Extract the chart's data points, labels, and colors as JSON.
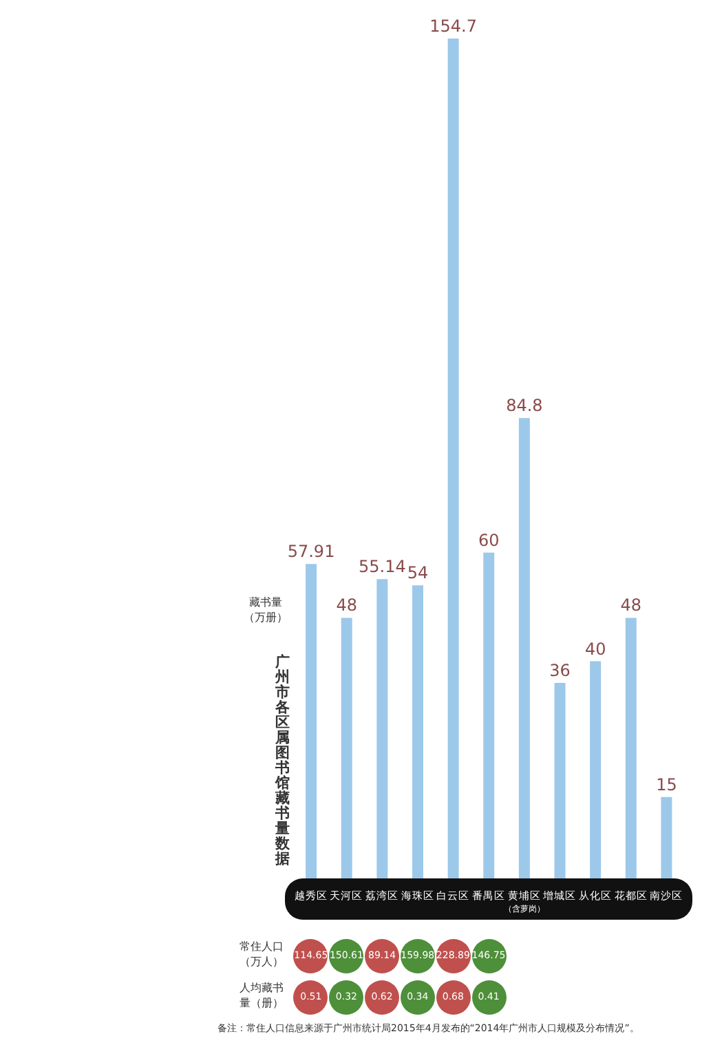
{
  "chart_data": {
    "type": "bar",
    "title": "广州市各区属图书馆藏书量数据",
    "ylabel": "藏书量（万册）",
    "categories": [
      "越秀区",
      "天河区",
      "荔湾区",
      "海珠区",
      "白云区",
      "番禺区",
      "黄埔区$_{（含萝岗）}$",
      "增城区",
      "从化区",
      "花都区",
      "南沙区"
    ],
    "values": [
      57.91,
      48,
      55.14,
      54,
      154.7,
      60,
      84.8,
      36,
      40,
      48,
      15
    ],
    "color": "#9cc8ea",
    "data_labels": true,
    "annotations": [
      "常住人口（万人）",
      "人均藏书量（册）",
      "备注：常住人口信息来源于广州市统计局2015年4月发布的“2014年广州市人口规模及分布情况”。",
      "114.65",
      "150.61",
      "89.14",
      "159.98",
      "228.89",
      "146.75",
      "0.51",
      "0.32",
      "0.62",
      "0.34",
      "0.68",
      "0.41"
    ]
  }
}
